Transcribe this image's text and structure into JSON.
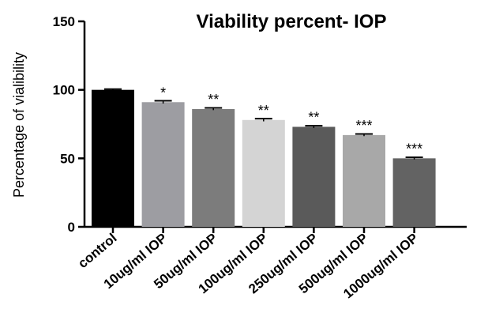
{
  "chart_data": {
    "type": "bar",
    "title": "Viability percent- IOP",
    "xlabel": "",
    "ylabel": "Percentage of vialibility",
    "ylim": [
      0,
      150
    ],
    "yticks": [
      0,
      50,
      100,
      150
    ],
    "yticks_labels": [
      "0",
      "50",
      "100",
      "150"
    ],
    "grid": false,
    "legend": "none",
    "categories": [
      "control",
      "10ug/ml IOP",
      "50ug/ml IOP",
      "100ug/ml IOP",
      "250ug/ml IOP",
      "500ug/ml IOP",
      "1000ug/ml IOP"
    ],
    "values": [
      100,
      91,
      86,
      78,
      73,
      67,
      50
    ],
    "errors": [
      0.5,
      1,
      0.8,
      1,
      0.8,
      0.8,
      0.8
    ],
    "significance": [
      "",
      "*",
      "**",
      "**",
      "**",
      "***",
      "***"
    ],
    "colors": [
      "#000000",
      "#9d9da2",
      "#7c7c7c",
      "#d4d4d4",
      "#5a5a5a",
      "#a8a8a8",
      "#636363"
    ]
  }
}
